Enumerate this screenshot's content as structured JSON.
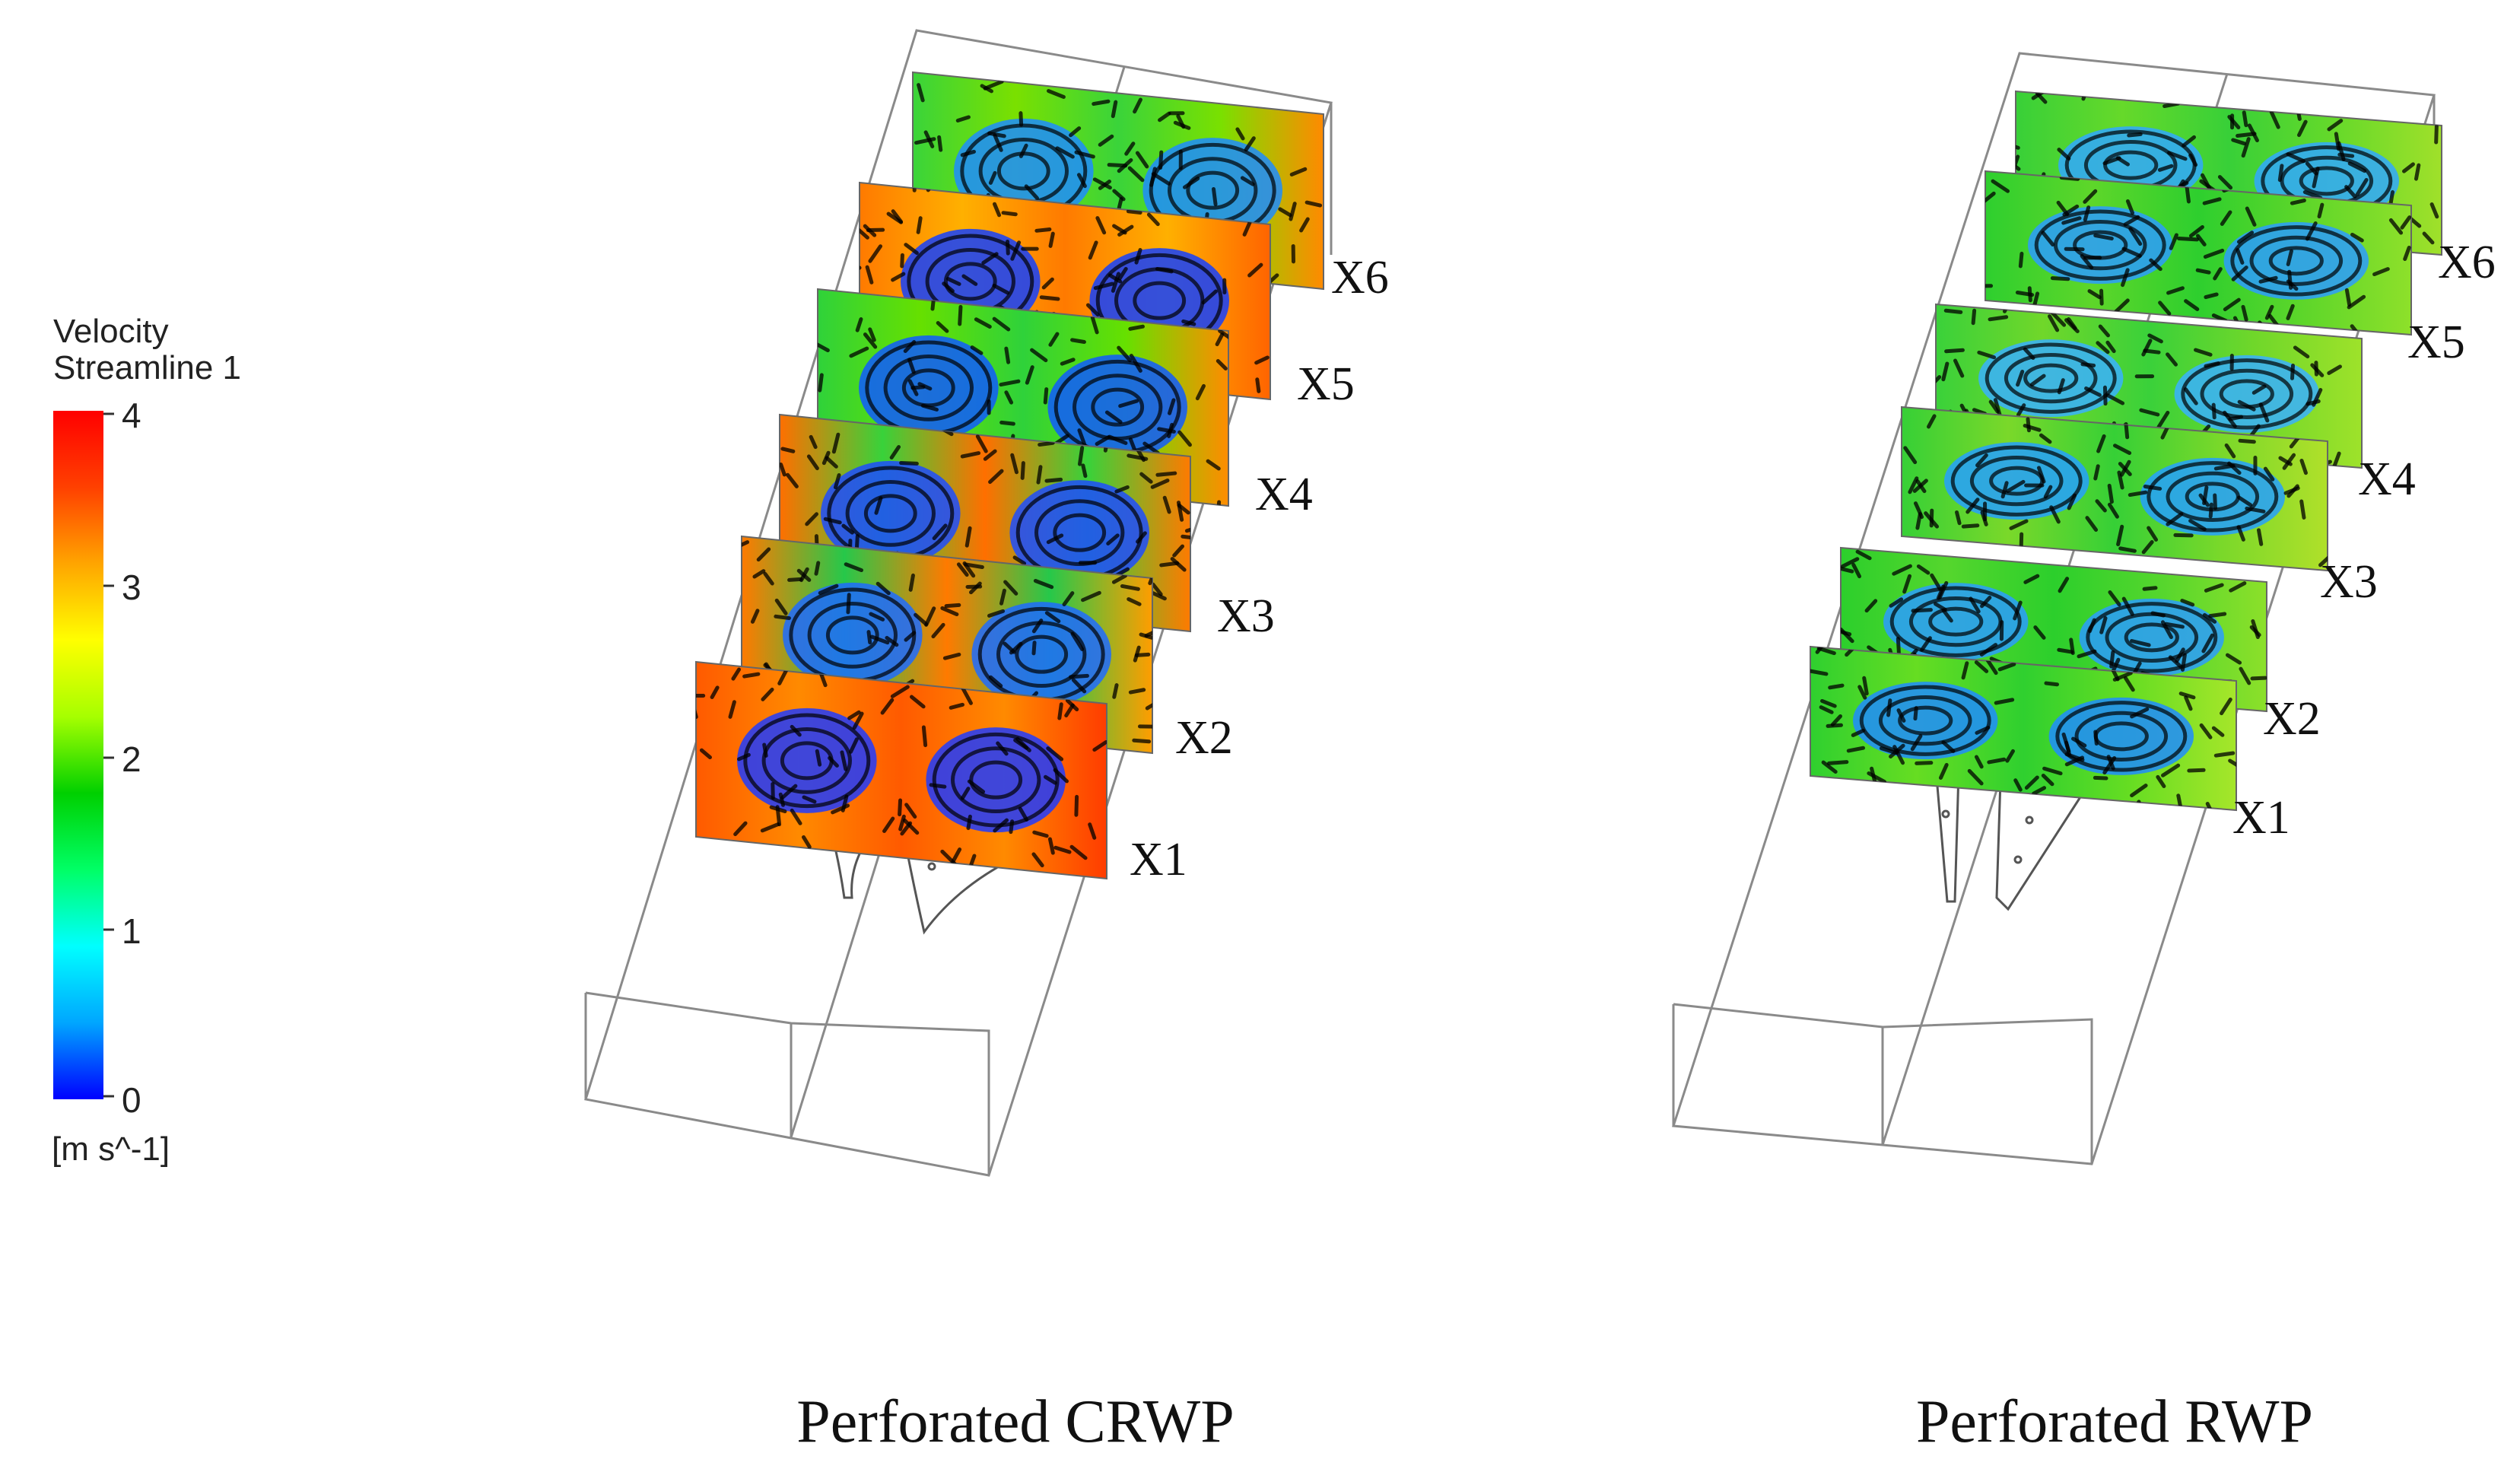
{
  "legend": {
    "title": "Velocity",
    "subtitle": "Streamline 1",
    "ticks": [
      "4",
      "3",
      "2",
      "1",
      "0"
    ],
    "unit": "[m s^-1]",
    "colormap": [
      "#0000ff",
      "#00a6ff",
      "#00ffff",
      "#00ff66",
      "#00d000",
      "#a6ff00",
      "#ffff00",
      "#ffa500",
      "#ff4000",
      "#ff0000"
    ]
  },
  "panels": [
    {
      "caption": "Perforated CRWP",
      "planes": [
        {
          "label": "X1",
          "palette": [
            "#ff5a00",
            "#ff8a00",
            "#1e3bff",
            "#ff3c00"
          ]
        },
        {
          "label": "X2",
          "palette": [
            "#ff7a00",
            "#26c84a",
            "#1f6bff",
            "#ff9d00"
          ]
        },
        {
          "label": "X3",
          "palette": [
            "#ff6f00",
            "#38d23a",
            "#1d4cff",
            "#ff7a00"
          ]
        },
        {
          "label": "X4",
          "palette": [
            "#2fd23a",
            "#66e000",
            "#0f5bff",
            "#ff8c00"
          ]
        },
        {
          "label": "X5",
          "palette": [
            "#ff7a00",
            "#ffb000",
            "#1340ff",
            "#ff6400"
          ]
        },
        {
          "label": "X6",
          "palette": [
            "#3ad43a",
            "#7ae000",
            "#1d8cff",
            "#ff8a00"
          ]
        }
      ]
    },
    {
      "caption": "Perforated RWP",
      "planes": [
        {
          "label": "X1",
          "palette": [
            "#2fd02f",
            "#66dd22",
            "#1e8cff",
            "#a6e62a"
          ]
        },
        {
          "label": "X2",
          "palette": [
            "#2ccf2c",
            "#55d62d",
            "#2a9cff",
            "#8ce02a"
          ]
        },
        {
          "label": "X3",
          "palette": [
            "#36d036",
            "#7ad82a",
            "#24a0ff",
            "#b0e02a"
          ]
        },
        {
          "label": "X4",
          "palette": [
            "#3ad13a",
            "#70d72a",
            "#38b0ff",
            "#9ee22a"
          ]
        },
        {
          "label": "X5",
          "palette": [
            "#2ecf2e",
            "#5ed62a",
            "#2c9cff",
            "#8ee02a"
          ]
        },
        {
          "label": "X6",
          "palette": [
            "#38d038",
            "#66d92a",
            "#30a8ff",
            "#a0e02a"
          ]
        }
      ]
    }
  ]
}
